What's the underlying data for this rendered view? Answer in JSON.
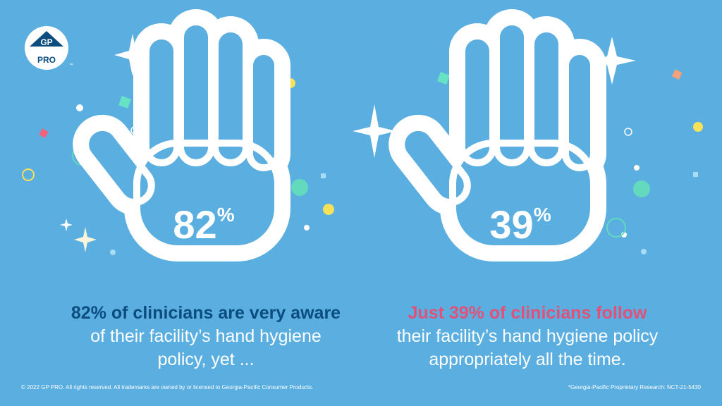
{
  "logo": {
    "top": "GP",
    "bottom": "PRO",
    "tm": "™"
  },
  "left_panel": {
    "percent_value": 82,
    "percent_number": "82",
    "percent_sign": "%",
    "fill_color": "#0c4d80",
    "headline": "82% of clinicians are very aware",
    "body_line1": "of their facility’s hand hygiene",
    "body_line2": "policy, yet ..."
  },
  "right_panel": {
    "percent_value": 39,
    "percent_number": "39",
    "percent_sign": "%",
    "fill_color": "#e0527a",
    "headline": "Just 39% of clinicians follow",
    "body_line1": "their facility’s hand hygiene policy",
    "body_line2": "appropriately all the time."
  },
  "footer": {
    "left": "© 2022 GP PRO. All rights reserved. All trademarks are owned by or licensed to Georgia-Pacific Consumer Products.",
    "right": "*Georgia-Pacific Proprietary Research: NCT-21-5430"
  },
  "colors": {
    "background": "#5aaee0",
    "outline": "#ffffff",
    "dark_blue": "#0c4d80",
    "pink": "#e0527a"
  }
}
